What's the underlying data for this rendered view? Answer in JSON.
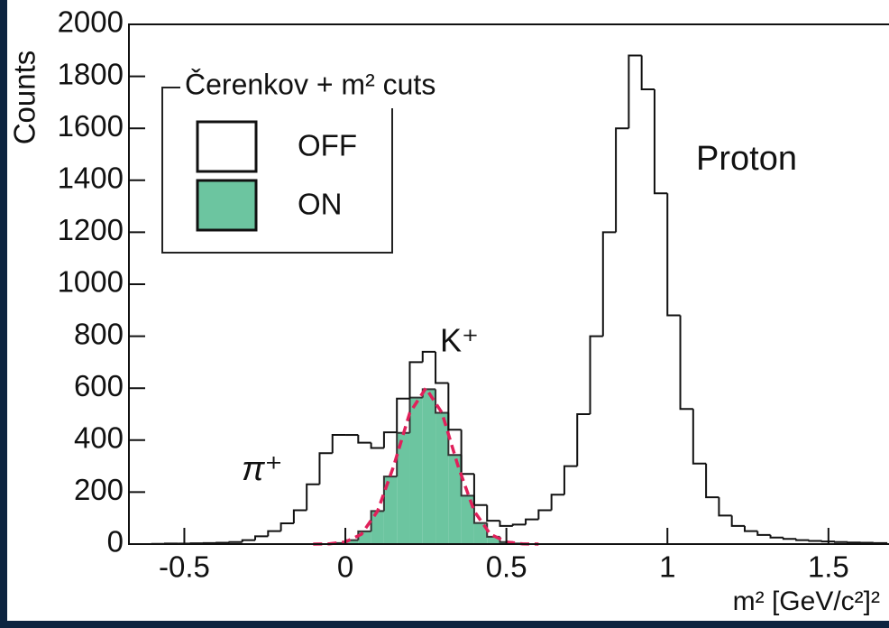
{
  "chart_data": {
    "type": "histogram",
    "y_label": "Counts",
    "x_label": "m² [GeV/c²]²",
    "legend_title": "Čerenkov + m² cuts",
    "annotations": [
      "Proton",
      "K⁺",
      "π⁺"
    ],
    "xlim": [
      -0.672,
      1.688
    ],
    "ylim": [
      0,
      2000
    ],
    "xticks": [
      -0.5,
      0,
      0.5,
      1,
      1.5
    ],
    "yticks": [
      0,
      200,
      400,
      600,
      800,
      1000,
      1200,
      1400,
      1600,
      1800,
      2000
    ],
    "bins": [
      -0.64,
      -0.6,
      -0.56,
      -0.52,
      -0.48,
      -0.44,
      -0.4,
      -0.36,
      -0.32,
      -0.28,
      -0.24,
      -0.2,
      -0.16,
      -0.12,
      -0.08,
      -0.04,
      0,
      0.04,
      0.08,
      0.12,
      0.16,
      0.2,
      0.24,
      0.28,
      0.32,
      0.36,
      0.4,
      0.44,
      0.48,
      0.52,
      0.56,
      0.6,
      0.64,
      0.68,
      0.72,
      0.76,
      0.8,
      0.84,
      0.88,
      0.92,
      0.96,
      1,
      1.04,
      1.08,
      1.12,
      1.16,
      1.2,
      1.24,
      1.28,
      1.32,
      1.36,
      1.4,
      1.44,
      1.48,
      1.52,
      1.56,
      1.6,
      1.64,
      1.68
    ],
    "series": [
      {
        "name": "OFF",
        "color": "#ffffff",
        "values": [
          0,
          1,
          2,
          2,
          3,
          4,
          5,
          8,
          15,
          30,
          50,
          80,
          130,
          230,
          350,
          420,
          420,
          390,
          370,
          430,
          560,
          700,
          740,
          620,
          440,
          270,
          150,
          90,
          70,
          75,
          95,
          130,
          190,
          300,
          500,
          800,
          1200,
          1600,
          1880,
          1750,
          1350,
          880,
          520,
          310,
          180,
          110,
          70,
          50,
          35,
          25,
          20,
          15,
          12,
          10,
          8,
          6,
          5,
          4
        ]
      },
      {
        "name": "ON",
        "color": "#6cc5a0",
        "values": [
          0,
          0,
          0,
          0,
          0,
          0,
          0,
          0,
          0,
          0,
          0,
          0,
          0,
          0,
          0,
          4,
          15,
          49,
          127,
          260,
          428,
          564,
          596,
          505,
          343,
          186,
          81,
          28,
          8,
          2,
          0,
          0,
          0,
          0,
          0,
          0,
          0,
          0,
          0,
          0,
          0,
          0,
          0,
          0,
          0,
          0,
          0,
          0,
          0,
          0,
          0,
          0,
          0,
          0,
          0,
          0,
          0,
          0
        ]
      }
    ],
    "fit": {
      "color": "#e0205a",
      "x": [
        -0.1,
        -0.05,
        0,
        0.05,
        0.1,
        0.15,
        0.2,
        0.25,
        0.3,
        0.35,
        0.4,
        0.45,
        0.5,
        0.55,
        0.6
      ],
      "values": [
        0,
        1,
        8,
        38,
        127,
        300,
        505,
        600,
        505,
        300,
        127,
        38,
        8,
        1,
        0
      ]
    }
  }
}
